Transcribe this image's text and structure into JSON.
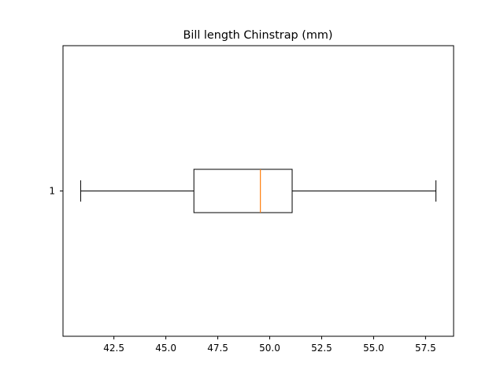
{
  "chart_data": {
    "type": "boxplot",
    "orientation": "horizontal",
    "title": "Bill length Chinstrap (mm)",
    "xlabel": "",
    "ylabel": "",
    "categories": [
      "1"
    ],
    "boxes": [
      {
        "label": "1",
        "whisker_low": 40.9,
        "q1": 46.35,
        "median": 49.55,
        "q3": 51.08,
        "whisker_high": 58.0
      }
    ],
    "xlim": [
      40.05,
      58.85
    ],
    "xticks": [
      42.5,
      45.0,
      47.5,
      50.0,
      52.5,
      55.0,
      57.5
    ],
    "xtick_labels": [
      "42.5",
      "45.0",
      "47.5",
      "50.0",
      "52.5",
      "55.0",
      "57.5"
    ],
    "grid": false,
    "colors": {
      "box": "#000000",
      "median": "#ff7f0e",
      "whisker": "#000000",
      "axes": "#000000"
    }
  }
}
